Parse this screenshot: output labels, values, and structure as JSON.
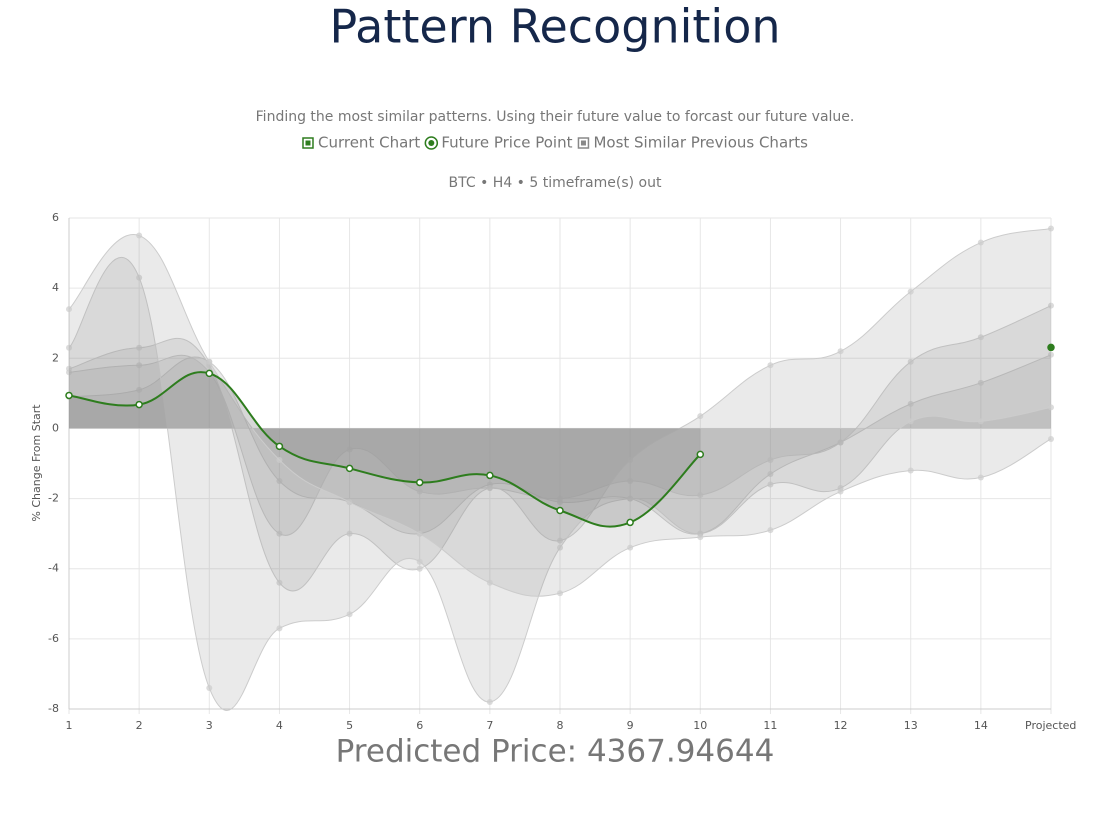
{
  "header": {
    "title": "Pattern Recognition"
  },
  "chart_data": {
    "type": "line",
    "title": "Finding the most similar patterns. Using their future value to forcast our future value.",
    "subtitle": "BTC • H4 • 5 timeframe(s) out",
    "y_label": "% Change From Start",
    "categories": [
      "1",
      "2",
      "3",
      "4",
      "5",
      "6",
      "7",
      "8",
      "9",
      "10",
      "11",
      "12",
      "13",
      "14",
      "Projected"
    ],
    "ylim": [
      -8,
      6
    ],
    "yticks": [
      6,
      4,
      2,
      0,
      -2,
      -4,
      -6,
      -8
    ],
    "grid": true,
    "series": [
      {
        "name": "Current Chart",
        "color": "#2e7d1e",
        "fill": "rgba(140,140,140,0.35)",
        "values": [
          0.94,
          0.68,
          1.57,
          -0.51,
          -1.14,
          -1.54,
          -1.34,
          -2.34,
          -2.68,
          -0.74,
          null,
          null,
          null,
          null,
          null
        ]
      },
      {
        "name": "Future Price Point",
        "color": "#2e7d1e",
        "values": [
          null,
          null,
          null,
          null,
          null,
          null,
          null,
          null,
          null,
          null,
          null,
          null,
          null,
          null,
          2.31
        ]
      },
      {
        "name": "Most Similar Previous Charts",
        "color": "#cccccc",
        "fill": "rgba(150,150,150,0.2)",
        "values": [
          3.4,
          5.5,
          1.9,
          -0.9,
          -2.1,
          -3.0,
          -4.4,
          -4.7,
          -3.4,
          -3.1,
          -2.9,
          -1.8,
          -1.2,
          -1.4,
          -0.3
        ]
      },
      {
        "name": "Most Similar Previous Charts",
        "color": "#cccccc",
        "fill": "rgba(150,150,150,0.2)",
        "values": [
          2.3,
          4.3,
          -7.4,
          -5.7,
          -5.3,
          -3.8,
          -7.8,
          -3.4,
          -2.0,
          -3.0,
          -1.6,
          -1.7,
          0.2,
          0.2,
          0.6
        ]
      },
      {
        "name": "Most Similar Previous Charts",
        "color": "#cccccc",
        "fill": "rgba(150,150,150,0.2)",
        "values": [
          1.7,
          2.3,
          1.8,
          -4.4,
          -3.0,
          -4.0,
          -1.7,
          -3.2,
          -0.9,
          0.35,
          1.8,
          2.2,
          3.9,
          5.3,
          5.7
        ]
      },
      {
        "name": "Most Similar Previous Charts",
        "color": "#cccccc",
        "fill": "rgba(150,150,150,0.2)",
        "values": [
          1.6,
          1.8,
          1.6,
          -3.0,
          -0.6,
          -1.8,
          -1.7,
          -2.0,
          -1.5,
          -1.9,
          -0.9,
          -0.4,
          1.9,
          2.6,
          3.5
        ]
      },
      {
        "name": "Most Similar Previous Charts",
        "color": "#cccccc",
        "fill": "rgba(150,150,150,0.2)",
        "values": [
          0.9,
          1.1,
          1.9,
          -1.5,
          -2.1,
          -3.0,
          -1.6,
          -2.1,
          -2.0,
          -3.0,
          -1.3,
          -0.4,
          0.7,
          1.3,
          2.1
        ]
      }
    ]
  },
  "prediction": "Predicted Price: 4367.94644"
}
